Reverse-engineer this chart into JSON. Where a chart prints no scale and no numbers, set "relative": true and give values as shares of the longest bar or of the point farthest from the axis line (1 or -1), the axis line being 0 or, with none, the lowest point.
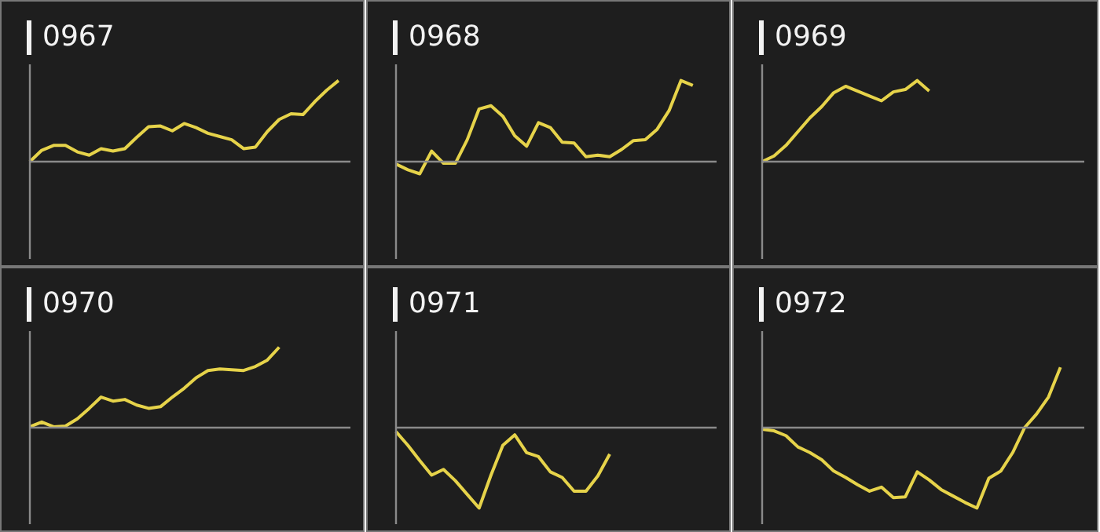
{
  "chart_data": [
    {
      "type": "line",
      "title": "0967",
      "relative": true,
      "color": "#e6d34a",
      "categories": [
        null,
        null,
        null,
        null,
        null,
        null,
        null,
        null,
        null,
        null,
        null,
        null,
        null,
        null,
        null,
        null,
        null,
        null,
        null,
        null,
        null,
        null,
        null,
        null,
        null,
        null,
        null,
        null
      ],
      "values": [
        0,
        0.14,
        0.2,
        0.2,
        0.12,
        0.08,
        0.16,
        0.13,
        0.16,
        0.3,
        0.43,
        0.44,
        0.38,
        0.47,
        0.42,
        0.35,
        0.31,
        0.27,
        0.16,
        0.18,
        0.37,
        0.52,
        0.59,
        0.58,
        0.74,
        0.88,
        1,
        null
      ]
    },
    {
      "type": "line",
      "title": "0968",
      "relative": true,
      "color": "#e6d34a",
      "categories": [
        null,
        null,
        null,
        null,
        null,
        null,
        null,
        null,
        null,
        null,
        null,
        null,
        null,
        null,
        null,
        null,
        null,
        null,
        null,
        null,
        null,
        null,
        null,
        null,
        null,
        null,
        null,
        null
      ],
      "values": [
        -0.03,
        -0.1,
        -0.15,
        0.13,
        -0.02,
        -0.02,
        0.27,
        0.65,
        0.69,
        0.56,
        0.32,
        0.19,
        0.48,
        0.42,
        0.24,
        0.23,
        0.06,
        0.08,
        0.06,
        0.15,
        0.26,
        0.27,
        0.4,
        0.63,
        1,
        0.94,
        null,
        null
      ]
    },
    {
      "type": "line",
      "title": "0969",
      "relative": true,
      "color": "#e6d34a",
      "categories": [
        null,
        null,
        null,
        null,
        null,
        null,
        null,
        null,
        null,
        null,
        null,
        null,
        null,
        null,
        null,
        null,
        null,
        null,
        null,
        null,
        null,
        null,
        null,
        null,
        null,
        null,
        null,
        null
      ],
      "values": [
        0,
        0.07,
        0.2,
        0.37,
        0.54,
        0.68,
        0.85,
        0.93,
        0.87,
        0.81,
        0.75,
        0.86,
        0.89,
        1,
        0.87,
        null,
        null,
        null,
        null,
        null,
        null,
        null,
        null,
        null,
        null,
        null,
        null,
        null
      ]
    },
    {
      "type": "line",
      "title": "0970",
      "relative": true,
      "color": "#e6d34a",
      "categories": [
        null,
        null,
        null,
        null,
        null,
        null,
        null,
        null,
        null,
        null,
        null,
        null,
        null,
        null,
        null,
        null,
        null,
        null,
        null,
        null,
        null,
        null,
        null,
        null,
        null,
        null,
        null,
        null
      ],
      "values": [
        0.01,
        0.07,
        0.01,
        0.02,
        0.11,
        0.24,
        0.38,
        0.33,
        0.35,
        0.28,
        0.24,
        0.26,
        0.38,
        0.49,
        0.62,
        0.71,
        0.73,
        0.72,
        0.71,
        0.76,
        0.84,
        1,
        null,
        null,
        null,
        null,
        null,
        null
      ]
    },
    {
      "type": "line",
      "title": "0971",
      "relative": true,
      "color": "#e6d34a",
      "categories": [
        null,
        null,
        null,
        null,
        null,
        null,
        null,
        null,
        null,
        null,
        null,
        null,
        null,
        null,
        null,
        null,
        null,
        null,
        null,
        null,
        null,
        null,
        null,
        null,
        null,
        null,
        null,
        null
      ],
      "values": [
        -0.05,
        -0.22,
        -0.41,
        -0.59,
        -0.52,
        -0.66,
        -0.83,
        -1,
        -0.59,
        -0.22,
        -0.09,
        -0.31,
        -0.36,
        -0.55,
        -0.62,
        -0.79,
        -0.79,
        -0.6,
        -0.33,
        null,
        null,
        null,
        null,
        null,
        null,
        null,
        null,
        null
      ]
    },
    {
      "type": "line",
      "title": "0972",
      "relative": true,
      "color": "#e6d34a",
      "categories": [
        null,
        null,
        null,
        null,
        null,
        null,
        null,
        null,
        null,
        null,
        null,
        null,
        null,
        null,
        null,
        null,
        null,
        null,
        null,
        null,
        null,
        null,
        null,
        null,
        null,
        null,
        null,
        null
      ],
      "values": [
        -0.02,
        -0.04,
        -0.1,
        -0.24,
        -0.31,
        -0.4,
        -0.54,
        -0.62,
        -0.71,
        -0.79,
        -0.74,
        -0.87,
        -0.86,
        -0.55,
        -0.65,
        -0.77,
        -0.85,
        -0.93,
        -1,
        -0.63,
        -0.54,
        -0.31,
        0,
        0.17,
        0.38,
        0.75,
        null,
        null
      ]
    }
  ]
}
